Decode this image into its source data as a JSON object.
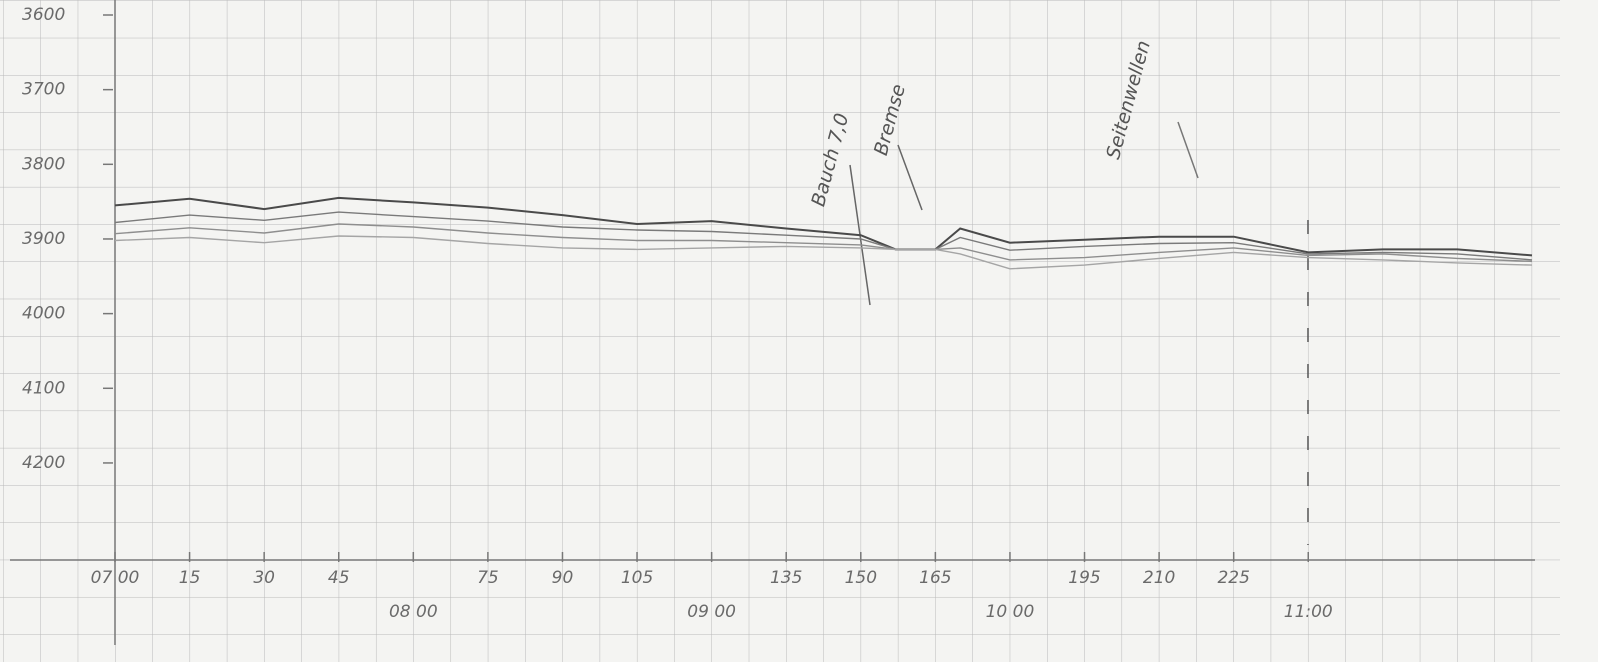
{
  "chart_data": {
    "type": "line",
    "x": [
      0,
      15,
      30,
      45,
      60,
      75,
      90,
      105,
      120,
      135,
      150,
      157,
      165,
      170,
      180,
      195,
      210,
      225,
      240,
      255,
      270,
      285
    ],
    "series": [
      {
        "color": "#4a4a4a",
        "values": [
          3855,
          3846,
          3860,
          3845,
          3851,
          3858,
          3868,
          3880,
          3876,
          3886,
          3895,
          3914,
          3914,
          3886,
          3905,
          3901,
          3897,
          3897,
          3918,
          3914,
          3914,
          3922
        ]
      },
      {
        "color": "#7a7a7a",
        "values": [
          3878,
          3868,
          3875,
          3864,
          3870,
          3876,
          3884,
          3888,
          3890,
          3895,
          3900,
          3914,
          3914,
          3898,
          3915,
          3910,
          3906,
          3905,
          3920,
          3918,
          3920,
          3928
        ]
      },
      {
        "color": "#8e8e8e",
        "values": [
          3893,
          3885,
          3892,
          3880,
          3884,
          3892,
          3898,
          3902,
          3902,
          3905,
          3908,
          3914,
          3914,
          3912,
          3928,
          3925,
          3918,
          3912,
          3922,
          3920,
          3926,
          3930
        ]
      },
      {
        "color": "#a5a5a5",
        "values": [
          3902,
          3898,
          3905,
          3896,
          3898,
          3906,
          3912,
          3914,
          3912,
          3910,
          3912,
          3914,
          3914,
          3920,
          3940,
          3935,
          3926,
          3918,
          3925,
          3928,
          3932,
          3935
        ]
      }
    ],
    "xlim": [
      0,
      285
    ],
    "xticks": [
      {
        "value": 0,
        "label": "07 00"
      },
      15,
      30,
      45,
      {
        "value": 60,
        "label": "08 00"
      },
      75,
      90,
      105,
      {
        "value": 120,
        "label": "09 00"
      },
      135,
      150,
      165,
      {
        "value": 180,
        "label": "10 00"
      },
      195,
      210,
      225,
      {
        "value": 240,
        "label": "11:00"
      }
    ],
    "ylim": [
      3600,
      4330
    ],
    "inverted_y": true,
    "yticks": [
      3600,
      3700,
      3800,
      3900,
      4000,
      4100,
      4200
    ],
    "annotations": [
      {
        "text": "Bauch 7,0",
        "x": 150
      },
      {
        "text": "Bremse",
        "x": 162
      },
      {
        "text": "Seitenwellen",
        "x": 210
      }
    ]
  }
}
